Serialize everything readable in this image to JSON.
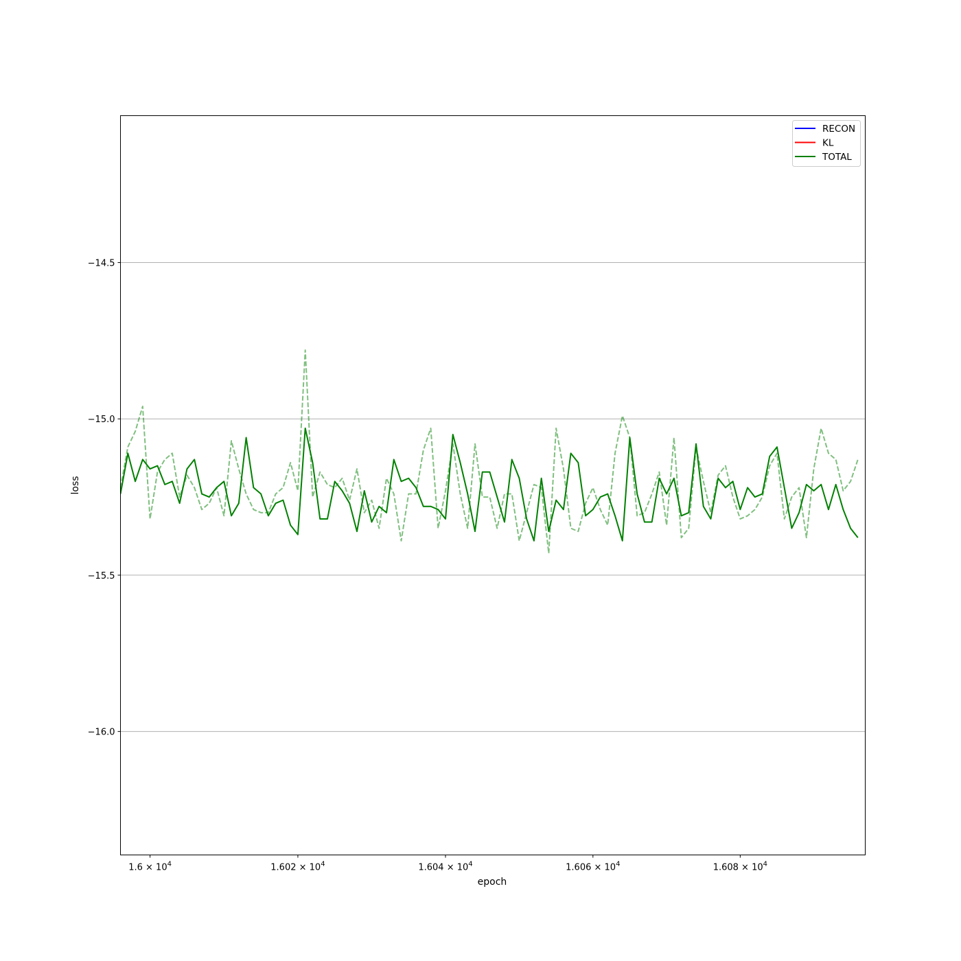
{
  "chart_data": {
    "type": "line",
    "xlabel": "epoch",
    "ylabel": "loss",
    "xscale": "log",
    "xlim": [
      15996,
      16097
    ],
    "ylim": [
      -16.395,
      -14.03
    ],
    "x_start": 15996,
    "grid": "y",
    "x_ticks": [
      {
        "value": 16000,
        "mantissa": "1.6",
        "exp": "4"
      },
      {
        "value": 16020,
        "mantissa": "1.602",
        "exp": "4"
      },
      {
        "value": 16040,
        "mantissa": "1.604",
        "exp": "4"
      },
      {
        "value": 16060,
        "mantissa": "1.606",
        "exp": "4"
      },
      {
        "value": 16080,
        "mantissa": "1.608",
        "exp": "4"
      }
    ],
    "y_ticks": [
      {
        "value": -14.5,
        "label": "−14.5"
      },
      {
        "value": -15.0,
        "label": "−15.0"
      },
      {
        "value": -15.5,
        "label": "−15.5"
      },
      {
        "value": -16.0,
        "label": "−16.0"
      }
    ],
    "legend": {
      "placement": "upper-right",
      "entries": [
        {
          "name": "RECON",
          "color": "#0000ff"
        },
        {
          "name": "KL",
          "color": "#ff0000"
        },
        {
          "name": "TOTAL",
          "color": "#008000"
        }
      ]
    },
    "series": [
      {
        "name": "TOTAL",
        "color": "#008000",
        "style": "solid",
        "values": [
          -15.24,
          -15.11,
          -15.2,
          -15.13,
          -15.16,
          -15.15,
          -15.21,
          -15.2,
          -15.27,
          -15.16,
          -15.13,
          -15.24,
          -15.25,
          -15.22,
          -15.2,
          -15.31,
          -15.27,
          -15.06,
          -15.22,
          -15.24,
          -15.31,
          -15.27,
          -15.26,
          -15.34,
          -15.37,
          -15.03,
          -15.14,
          -15.32,
          -15.32,
          -15.2,
          -15.23,
          -15.27,
          -15.36,
          -15.23,
          -15.33,
          -15.28,
          -15.3,
          -15.13,
          -15.2,
          -15.19,
          -15.22,
          -15.28,
          -15.28,
          -15.29,
          -15.32,
          -15.05,
          -15.14,
          -15.24,
          -15.36,
          -15.17,
          -15.17,
          -15.25,
          -15.33,
          -15.13,
          -15.19,
          -15.32,
          -15.39,
          -15.19,
          -15.36,
          -15.26,
          -15.29,
          -15.11,
          -15.14,
          -15.31,
          -15.29,
          -15.25,
          -15.24,
          -15.31,
          -15.39,
          -15.06,
          -15.24,
          -15.33,
          -15.33,
          -15.19,
          -15.24,
          -15.19,
          -15.31,
          -15.3,
          -15.08,
          -15.28,
          -15.32,
          -15.19,
          -15.22,
          -15.2,
          -15.29,
          -15.22,
          -15.25,
          -15.24,
          -15.12,
          -15.09,
          -15.22,
          -15.35,
          -15.3,
          -15.21,
          -15.23,
          -15.21,
          -15.29,
          -15.21,
          -15.29,
          -15.35,
          -15.38
        ]
      },
      {
        "name": "",
        "color": "#008000",
        "style": "dashed",
        "opacity": 0.5,
        "values": [
          -15.22,
          -15.09,
          -15.04,
          -14.96,
          -15.32,
          -15.17,
          -15.13,
          -15.11,
          -15.25,
          -15.18,
          -15.22,
          -15.29,
          -15.27,
          -15.22,
          -15.31,
          -15.07,
          -15.16,
          -15.24,
          -15.29,
          -15.3,
          -15.3,
          -15.24,
          -15.22,
          -15.14,
          -15.23,
          -14.78,
          -15.25,
          -15.17,
          -15.21,
          -15.22,
          -15.19,
          -15.26,
          -15.16,
          -15.3,
          -15.26,
          -15.35,
          -15.19,
          -15.24,
          -15.39,
          -15.24,
          -15.24,
          -15.1,
          -15.03,
          -15.35,
          -15.23,
          -15.08,
          -15.24,
          -15.35,
          -15.08,
          -15.25,
          -15.25,
          -15.35,
          -15.24,
          -15.24,
          -15.39,
          -15.3,
          -15.21,
          -15.22,
          -15.43,
          -15.03,
          -15.16,
          -15.35,
          -15.36,
          -15.27,
          -15.22,
          -15.29,
          -15.34,
          -15.11,
          -14.99,
          -15.06,
          -15.31,
          -15.3,
          -15.24,
          -15.17,
          -15.34,
          -15.06,
          -15.38,
          -15.35,
          -15.09,
          -15.2,
          -15.3,
          -15.18,
          -15.15,
          -15.25,
          -15.32,
          -15.31,
          -15.29,
          -15.25,
          -15.15,
          -15.11,
          -15.32,
          -15.25,
          -15.22,
          -15.38,
          -15.16,
          -15.03,
          -15.11,
          -15.13,
          -15.23,
          -15.2,
          -15.13
        ]
      }
    ]
  }
}
